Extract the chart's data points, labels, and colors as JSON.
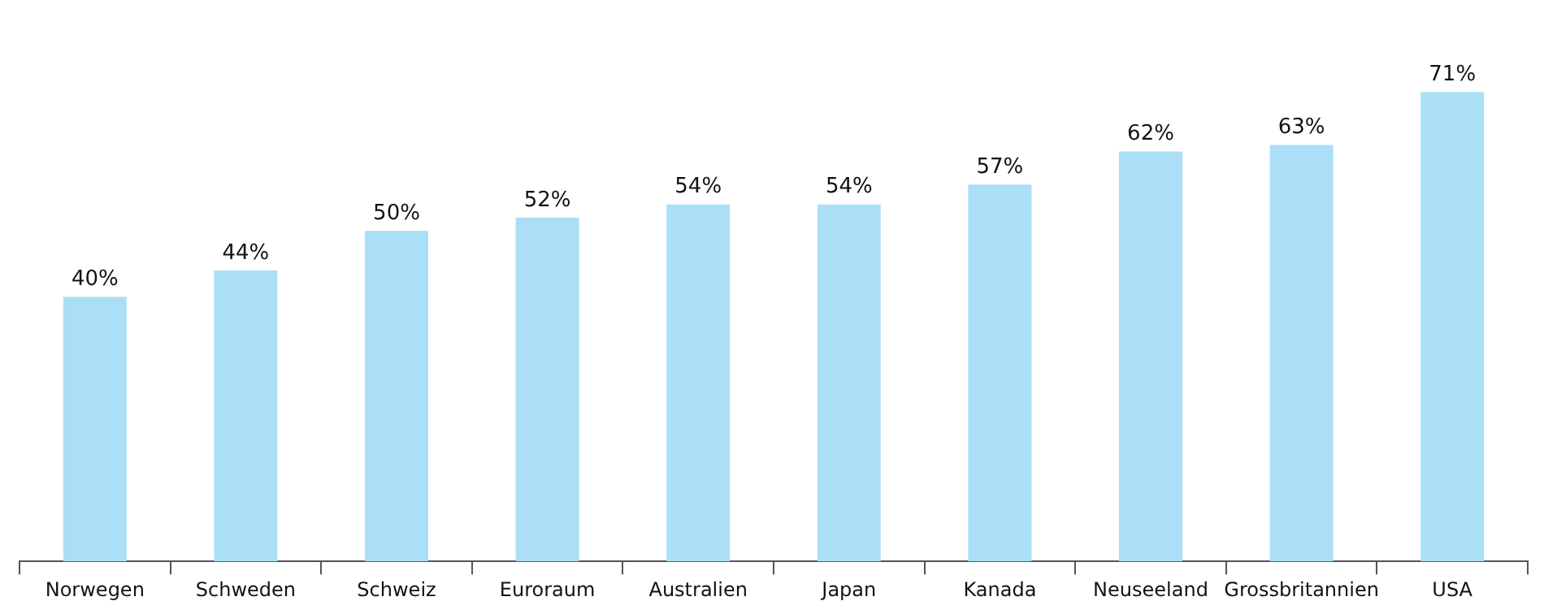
{
  "chart_data": {
    "type": "bar",
    "categories": [
      "Norwegen",
      "Schweden",
      "Schweiz",
      "Euroraum",
      "Australien",
      "Japan",
      "Kanada",
      "Neuseeland",
      "Grossbritannien",
      "USA"
    ],
    "values": [
      40,
      44,
      50,
      52,
      54,
      54,
      57,
      62,
      63,
      71
    ],
    "value_labels": [
      "40%",
      "44%",
      "50%",
      "52%",
      "54%",
      "54%",
      "57%",
      "62%",
      "63%",
      "71%"
    ],
    "color": "#aadff7",
    "grid": false,
    "legend": false,
    "tick_labels": "x"
  }
}
